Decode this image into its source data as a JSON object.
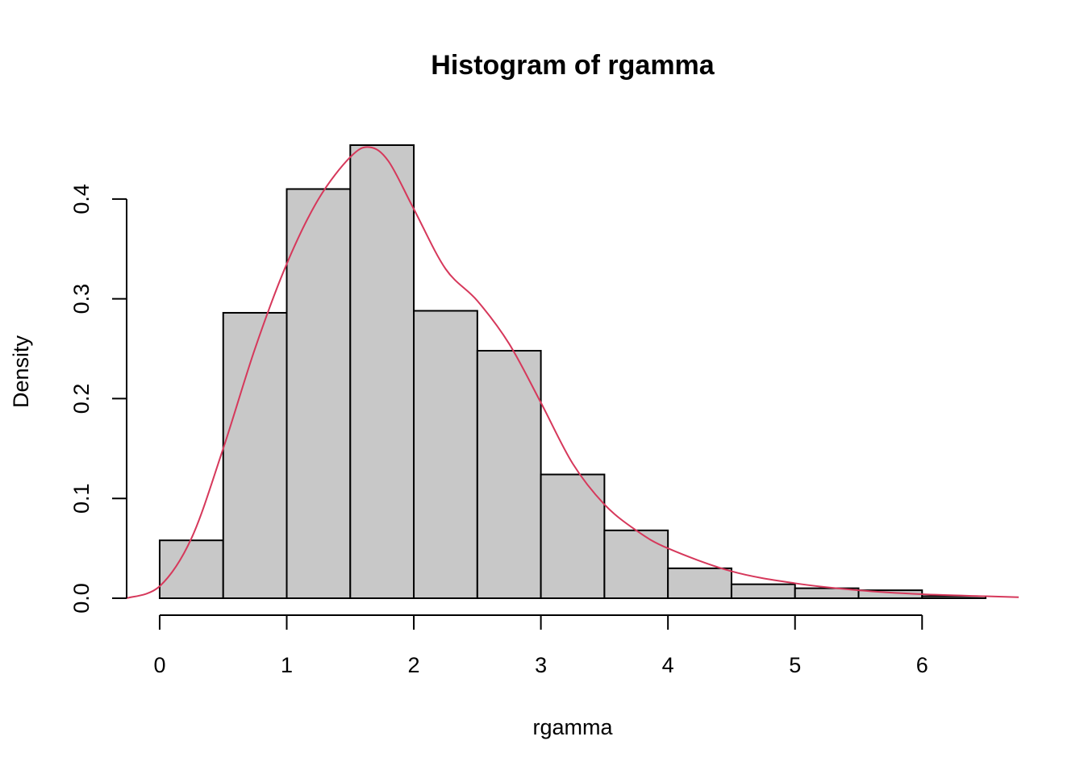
{
  "chart_data": {
    "type": "bar",
    "title": "Histogram of rgamma",
    "xlabel": "rgamma",
    "ylabel": "Density",
    "bin_edges": [
      0,
      0.5,
      1,
      1.5,
      2,
      2.5,
      3,
      3.5,
      4,
      4.5,
      5,
      5.5,
      6,
      6.5
    ],
    "values": [
      0.058,
      0.286,
      0.41,
      0.454,
      0.288,
      0.248,
      0.124,
      0.068,
      0.03,
      0.014,
      0.01,
      0.008,
      0.002
    ],
    "xlim": [
      -0.26,
      6.76
    ],
    "ylim": [
      0,
      0.454
    ],
    "x_ticks": [
      0,
      1,
      2,
      3,
      4,
      5,
      6
    ],
    "x_tick_labels": [
      "0",
      "1",
      "2",
      "3",
      "4",
      "5",
      "6"
    ],
    "y_ticks": [
      0,
      0.1,
      0.2,
      0.3,
      0.4
    ],
    "y_tick_labels": [
      "0.0",
      "0.1",
      "0.2",
      "0.3",
      "0.4"
    ],
    "density_curve": {
      "x": [
        -0.26,
        0,
        0.25,
        0.5,
        0.75,
        1.0,
        1.25,
        1.5,
        1.65,
        1.8,
        2.0,
        2.25,
        2.5,
        2.75,
        3.0,
        3.25,
        3.5,
        3.75,
        4.0,
        4.5,
        5.0,
        5.5,
        6.0,
        6.5,
        6.76
      ],
      "y": [
        0.0,
        0.012,
        0.06,
        0.15,
        0.25,
        0.335,
        0.4,
        0.442,
        0.452,
        0.438,
        0.39,
        0.33,
        0.298,
        0.255,
        0.196,
        0.135,
        0.094,
        0.068,
        0.05,
        0.027,
        0.015,
        0.008,
        0.004,
        0.002,
        0.001
      ],
      "color": "#d6385b"
    },
    "bar_color": "#c8c8c8",
    "grid": false
  }
}
